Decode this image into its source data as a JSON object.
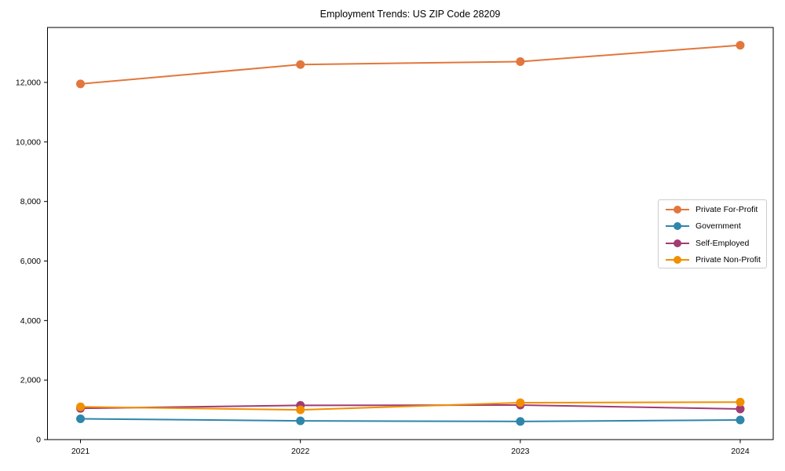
{
  "chart_data": {
    "type": "line",
    "title": "Employment Trends: US ZIP Code 28209",
    "xlabel": "",
    "ylabel": "",
    "x": [
      2021,
      2022,
      2023,
      2024
    ],
    "x_tick_labels": [
      "2021",
      "2022",
      "2023",
      "2024"
    ],
    "series": [
      {
        "name": "Private For-Profit",
        "color": "#E2763C",
        "values": [
          11950,
          12600,
          12700,
          13250
        ]
      },
      {
        "name": "Government",
        "color": "#2E86AB",
        "values": [
          700,
          630,
          610,
          660
        ]
      },
      {
        "name": "Self-Employed",
        "color": "#A23B72",
        "values": [
          1050,
          1150,
          1160,
          1030
        ]
      },
      {
        "name": "Private Non-Profit",
        "color": "#F18F01",
        "values": [
          1100,
          1000,
          1240,
          1260
        ]
      }
    ],
    "yticks": [
      0,
      2000,
      4000,
      6000,
      8000,
      10000,
      12000
    ],
    "ytick_labels": [
      "0",
      "2,000",
      "4,000",
      "6,000",
      "8,000",
      "10,000",
      "12,000"
    ],
    "xlim": [
      2020.85,
      2024.15
    ],
    "ylim": [
      0,
      13846
    ],
    "grid": false,
    "legend_position": "center-right",
    "axis_color": "#000000"
  }
}
